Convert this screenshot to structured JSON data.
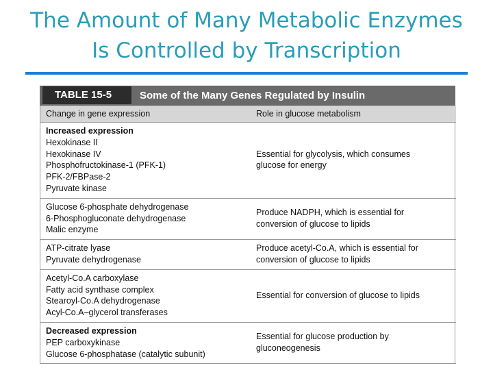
{
  "title": [
    "The Amount of Many Metabolic Enzymes",
    "Is Controlled by Transcription"
  ],
  "table": {
    "label": "TABLE 15-5",
    "caption": "Some of the Many Genes Regulated by Insulin",
    "columns": [
      "Change in gene expression",
      "Role in glucose metabolism"
    ],
    "rows": [
      {
        "heading": "Increased expression",
        "items": [
          "Hexokinase II",
          "Hexokinase IV",
          "Phosphofructokinase-1 (PFK-1)",
          "PFK-2/FBPase-2",
          "Pyruvate kinase"
        ],
        "role": [
          "Essential for glycolysis, which consumes",
          "glucose for energy"
        ]
      },
      {
        "items": [
          "Glucose 6-phosphate dehydrogenase",
          "6-Phosphogluconate dehydrogenase",
          "Malic enzyme"
        ],
        "role": [
          "Produce NADPH, which is essential for",
          "conversion of glucose to lipids"
        ]
      },
      {
        "items": [
          "ATP-citrate lyase",
          "Pyruvate dehydrogenase"
        ],
        "role": [
          "Produce acetyl-Co.A, which is essential for",
          "conversion of glucose to lipids"
        ]
      },
      {
        "items": [
          "Acetyl-Co.A carboxylase",
          "Fatty acid synthase complex",
          "Stearoyl-Co.A dehydrogenase",
          "Acyl-Co.A–glycerol transferases"
        ],
        "role": [
          "Essential for conversion of glucose to lipids"
        ]
      },
      {
        "heading": "Decreased expression",
        "items": [
          "PEP carboxykinase",
          "Glucose 6-phosphatase (catalytic subunit)"
        ],
        "role": [
          "Essential for glucose production by",
          "gluconeogenesis"
        ]
      }
    ]
  }
}
